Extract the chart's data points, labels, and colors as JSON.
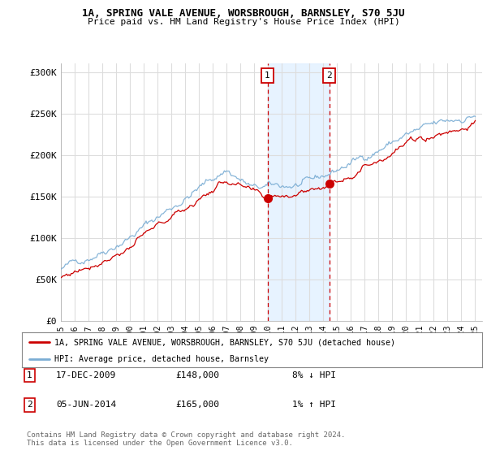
{
  "title": "1A, SPRING VALE AVENUE, WORSBROUGH, BARNSLEY, S70 5JU",
  "subtitle": "Price paid vs. HM Land Registry's House Price Index (HPI)",
  "ylabel_ticks": [
    "£0",
    "£50K",
    "£100K",
    "£150K",
    "£200K",
    "£250K",
    "£300K"
  ],
  "ytick_values": [
    0,
    50000,
    100000,
    150000,
    200000,
    250000,
    300000
  ],
  "ylim": [
    0,
    310000
  ],
  "xlim_start": 1995.0,
  "xlim_end": 2025.5,
  "hpi_color": "#7aadd4",
  "price_color": "#cc0000",
  "purchase1_date": 2009.96,
  "purchase1_price": 148000,
  "purchase1_label": "17-DEC-2009",
  "purchase1_amount": "£148,000",
  "purchase1_note": "8% ↓ HPI",
  "purchase2_date": 2014.43,
  "purchase2_price": 165000,
  "purchase2_label": "05-JUN-2014",
  "purchase2_amount": "£165,000",
  "purchase2_note": "1% ↑ HPI",
  "legend_line1": "1A, SPRING VALE AVENUE, WORSBROUGH, BARNSLEY, S70 5JU (detached house)",
  "legend_line2": "HPI: Average price, detached house, Barnsley",
  "footer": "Contains HM Land Registry data © Crown copyright and database right 2024.\nThis data is licensed under the Open Government Licence v3.0.",
  "bg_color": "#ffffff",
  "plot_bg_color": "#ffffff",
  "grid_color": "#dddddd",
  "shaded_region_color": "#ddeeff"
}
